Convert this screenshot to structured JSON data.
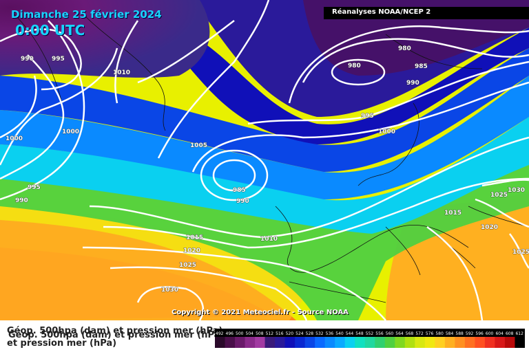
{
  "header": {
    "date": "Dimanche 25 février 2024",
    "time": "0:00 UTC",
    "source_badge": "Réanalyses NOAA/NCEP 2"
  },
  "footer": {
    "copyright": "Copyright © 2021 Meteociel.fr - Source NOAA",
    "caption_line1": "Géop. 500hpa (dam) et pression mer (hPa)",
    "caption_line1_overlap": "Géop. 500hpa (dam) et pression mer (hPa)",
    "caption_line2": "et pression mer (hPa)"
  },
  "legend": {
    "ticks": [
      "492",
      "496",
      "500",
      "504",
      "508",
      "512",
      "516",
      "520",
      "524",
      "528",
      "532",
      "536",
      "540",
      "544",
      "548",
      "552",
      "556",
      "560",
      "564",
      "568",
      "572",
      "576",
      "580",
      "584",
      "588",
      "592",
      "596",
      "600",
      "604",
      "608",
      "612"
    ],
    "colors": [
      "#2a0a2a",
      "#4a0f4a",
      "#6a1a6a",
      "#8a2a8a",
      "#a23aa2",
      "#3a1a7a",
      "#2a1a9a",
      "#1010b8",
      "#0a28d0",
      "#0a46e6",
      "#0a6aff",
      "#0a8aff",
      "#0aaaff",
      "#0ad0f0",
      "#10e0c0",
      "#20d8a0",
      "#30d070",
      "#50d040",
      "#80d820",
      "#b0e010",
      "#d8e810",
      "#f0e810",
      "#ffd020",
      "#ffb020",
      "#ff9020",
      "#ff7020",
      "#ff5020",
      "#f03020",
      "#d81818",
      "#b80a0a",
      "#000000"
    ]
  },
  "map": {
    "isobar_labels": [
      {
        "text": "990"
      },
      {
        "text": "995"
      },
      {
        "text": "1010"
      },
      {
        "text": "980"
      },
      {
        "text": "980"
      },
      {
        "text": "985"
      },
      {
        "text": "990"
      },
      {
        "text": "995"
      },
      {
        "text": "1000"
      },
      {
        "text": "1000"
      },
      {
        "text": "1005"
      },
      {
        "text": "1000"
      },
      {
        "text": "995"
      },
      {
        "text": "990"
      },
      {
        "text": "985"
      },
      {
        "text": "990"
      },
      {
        "text": "1010"
      },
      {
        "text": "1015"
      },
      {
        "text": "1020"
      },
      {
        "text": "1025"
      },
      {
        "text": "1030"
      },
      {
        "text": "1015"
      },
      {
        "text": "1025"
      },
      {
        "text": "1030"
      },
      {
        "text": "1020"
      },
      {
        "text": "1025"
      }
    ]
  }
}
